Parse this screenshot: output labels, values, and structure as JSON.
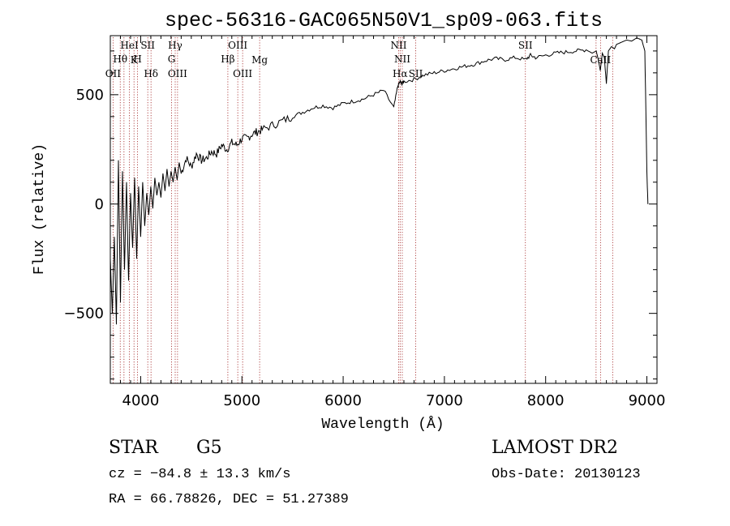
{
  "chart_data": {
    "type": "line",
    "title": "spec-56316-GAC065N50V1_sp09-063.fits",
    "xlabel": "Wavelength (Å)",
    "ylabel": "Flux (relative)",
    "xlim": [
      3700,
      9100
    ],
    "ylim": [
      -820,
      770
    ],
    "x_ticks": [
      4000,
      5000,
      6000,
      7000,
      8000,
      9000
    ],
    "x_tick_labels": [
      "4000",
      "5000",
      "6000",
      "7000",
      "8000",
      "9000"
    ],
    "y_ticks": [
      -500,
      0,
      500
    ],
    "y_tick_labels": [
      "−500",
      "0",
      "500"
    ],
    "grid": false,
    "series": [
      {
        "x": [
          3700,
          3720,
          3740,
          3760,
          3780,
          3800,
          3820,
          3840,
          3860,
          3880,
          3900,
          3920,
          3940,
          3960,
          3980,
          4000,
          4020,
          4040,
          4060,
          4080,
          4100,
          4120,
          4140,
          4160,
          4180,
          4200,
          4220,
          4240,
          4260,
          4280,
          4300,
          4320,
          4340,
          4360,
          4380,
          4400,
          4450,
          4500,
          4550,
          4600,
          4650,
          4700,
          4750,
          4800,
          4850,
          4900,
          4950,
          5000,
          5050,
          5100,
          5150,
          5200,
          5300,
          5400,
          5500,
          5600,
          5700,
          5800,
          5900,
          6000,
          6100,
          6200,
          6300,
          6400,
          6500,
          6540,
          6563,
          6580,
          6600,
          6700,
          6800,
          6900,
          7000,
          7100,
          7200,
          7300,
          7400,
          7500,
          7600,
          7700,
          7800,
          7850,
          7900,
          8000,
          8100,
          8200,
          8300,
          8400,
          8460,
          8500,
          8520,
          8540,
          8560,
          8580,
          8600,
          8620,
          8650,
          8680,
          8700,
          8750,
          8800,
          8850,
          8900,
          8950,
          8980,
          9000,
          9010
        ],
        "y": [
          -250,
          -500,
          -150,
          -550,
          200,
          -450,
          150,
          -300,
          100,
          -350,
          50,
          -200,
          120,
          -250,
          80,
          -150,
          100,
          -100,
          50,
          -50,
          80,
          -20,
          120,
          40,
          100,
          30,
          140,
          60,
          160,
          80,
          150,
          100,
          170,
          110,
          190,
          140,
          210,
          170,
          230,
          200,
          210,
          240,
          230,
          270,
          250,
          280,
          270,
          300,
          300,
          320,
          330,
          340,
          360,
          380,
          400,
          420,
          440,
          450,
          440,
          460,
          470,
          480,
          500,
          520,
          440,
          540,
          560,
          550,
          560,
          570,
          590,
          600,
          610,
          620,
          630,
          640,
          655,
          665,
          660,
          670,
          660,
          680,
          670,
          680,
          690,
          695,
          700,
          705,
          690,
          700,
          660,
          610,
          690,
          670,
          550,
          700,
          720,
          710,
          730,
          740,
          750,
          745,
          760,
          750,
          700,
          150,
          0
        ],
        "color": "#000000"
      }
    ],
    "line_labels": [
      {
        "text": "OII",
        "x": 3727
      },
      {
        "text": "Hθ",
        "x": 3798
      },
      {
        "text": "HeI",
        "x": 3889
      },
      {
        "text": "K",
        "x": 3934
      },
      {
        "text": "H",
        "x": 3969
      },
      {
        "text": "SII",
        "x": 4070
      },
      {
        "text": "Hδ",
        "x": 4102
      },
      {
        "text": "Hγ",
        "x": 4341
      },
      {
        "text": "G",
        "x": 4305
      },
      {
        "text": "OIII",
        "x": 4364
      },
      {
        "text": "Hβ",
        "x": 4861
      },
      {
        "text": "OIII",
        "x": 4959
      },
      {
        "text": "OIII",
        "x": 5007
      },
      {
        "text": "Mg",
        "x": 5175
      },
      {
        "text": "NII",
        "x": 6548
      },
      {
        "text": "NII",
        "x": 6584
      },
      {
        "text": "Hα",
        "x": 6563
      },
      {
        "text": "SII",
        "x": 6717
      },
      {
        "text": "SII",
        "x": 7800
      },
      {
        "text": "CaII",
        "x": 8542
      }
    ],
    "line_markers_x": [
      3727,
      3798,
      3835,
      3889,
      3934,
      3969,
      4070,
      4102,
      4305,
      4341,
      4364,
      4861,
      4959,
      5007,
      5175,
      6548,
      6563,
      6584,
      6717,
      7800,
      8498,
      8542,
      8662
    ]
  },
  "info": {
    "object_class": "STAR",
    "subclass": "G5",
    "survey": "LAMOST DR2",
    "cz": "cz = −84.8 ± 13.3 km/s",
    "obs_date": "Obs-Date: 20130123",
    "coords": "RA =  66.78826, DEC =  51.27389"
  }
}
